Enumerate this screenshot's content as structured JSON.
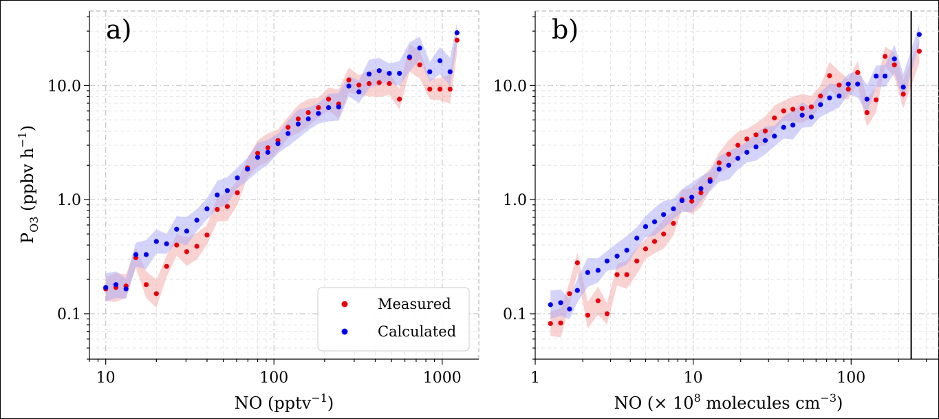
{
  "colors": {
    "measured": "#e8000b",
    "calculated": "#0000ee",
    "measured_band": "#f4a6a6",
    "calculated_band": "#a9a9f5"
  },
  "y_axis": {
    "label_main": "P",
    "label_sub": "O3",
    "label_units": " (ppbv h",
    "label_exp": "−1",
    "label_close": ")",
    "ticks": [
      "0.1",
      "1.0",
      "10.0"
    ]
  },
  "chart_data": [
    {
      "type": "scatter",
      "panel": "a)",
      "x_scale": "log",
      "y_scale": "log",
      "xlim": [
        8,
        1650
      ],
      "ylim": [
        0.04,
        45
      ],
      "xlabel_main": "NO (pptv",
      "xlabel_exp": "−1",
      "xlabel_close": ")",
      "xticks": [
        "10",
        "100",
        "1000"
      ],
      "legend": {
        "placement": "lower-right",
        "entries": [
          "Measured",
          "Calculated"
        ]
      },
      "grid": true,
      "series": [
        {
          "name": "Measured",
          "x": [
            10,
            11.5,
            13.2,
            15.1,
            17.4,
            20,
            23,
            26.4,
            30.3,
            34.8,
            40,
            46,
            52.8,
            60.6,
            69.6,
            80,
            92,
            105.6,
            121.3,
            139.3,
            160,
            183.8,
            211.1,
            242.5,
            278.6,
            320,
            367.6,
            422.3,
            485.1,
            557.2,
            640,
            735,
            844,
            970,
            1114,
            1225
          ],
          "y": [
            0.165,
            0.17,
            0.175,
            0.31,
            0.18,
            0.15,
            0.26,
            0.4,
            0.35,
            0.39,
            0.49,
            0.82,
            0.87,
            1.15,
            1.9,
            2.55,
            2.85,
            3.3,
            4.3,
            5.1,
            5.8,
            6.4,
            7.6,
            6.9,
            11.2,
            10.1,
            10.4,
            10.6,
            10.4,
            7.6,
            17.5,
            15.2,
            9.3,
            9.3,
            9.3,
            25
          ]
        },
        {
          "name": "Calculated",
          "x": [
            10,
            11.5,
            13.2,
            15.1,
            17.4,
            20,
            23,
            26.4,
            30.3,
            34.8,
            40,
            46,
            52.8,
            60.6,
            69.6,
            80,
            92,
            105.6,
            121.3,
            139.3,
            160,
            183.8,
            211.1,
            242.5,
            278.6,
            320,
            367.6,
            422.3,
            485.1,
            557.2,
            640,
            735,
            844,
            970,
            1114,
            1225
          ],
          "y": [
            0.17,
            0.18,
            0.165,
            0.33,
            0.33,
            0.43,
            0.41,
            0.55,
            0.53,
            0.66,
            0.83,
            1.1,
            1.2,
            1.55,
            1.85,
            2.35,
            2.6,
            3.1,
            3.8,
            4.6,
            5.1,
            5.7,
            6.4,
            6.5,
            9.9,
            8.8,
            12.6,
            13.5,
            12.8,
            12.8,
            17.8,
            21.3,
            13.2,
            16.5,
            13.2,
            29
          ]
        }
      ]
    },
    {
      "type": "scatter",
      "panel": "b)",
      "x_scale": "log",
      "y_scale": "log",
      "xlim": [
        1,
        360
      ],
      "ylim": [
        0.04,
        45
      ],
      "xlabel_main": "NO (× 10",
      "xlabel_exp": "8",
      "xlabel_units": " molecules cm",
      "xlabel_exp2": "−3",
      "xlabel_close": ")",
      "xticks": [
        "1",
        "10",
        "100"
      ],
      "vline_x": 240,
      "grid": true,
      "series": [
        {
          "name": "Measured",
          "x": [
            1.25,
            1.45,
            1.65,
            1.85,
            2.15,
            2.5,
            2.85,
            3.3,
            3.8,
            4.4,
            5,
            5.7,
            6.5,
            7.5,
            8.5,
            9.8,
            11.2,
            12.8,
            14.6,
            16.8,
            19.2,
            21.9,
            25,
            28.6,
            32.7,
            37.4,
            42.8,
            49,
            56,
            64,
            73,
            84,
            96,
            110,
            126,
            144,
            164,
            188,
            214,
            270
          ],
          "y": [
            0.082,
            0.083,
            0.15,
            0.28,
            0.097,
            0.13,
            0.1,
            0.22,
            0.22,
            0.29,
            0.37,
            0.43,
            0.5,
            0.62,
            1.0,
            0.97,
            1.15,
            1.5,
            2.1,
            2.5,
            3.0,
            3.4,
            3.7,
            4.0,
            5.2,
            6.0,
            6.2,
            6.3,
            6.5,
            8.1,
            12.2,
            10.1,
            9.3,
            13,
            5.8,
            7.5,
            18,
            15.2,
            8.4,
            20
          ]
        },
        {
          "name": "Calculated",
          "x": [
            1.25,
            1.45,
            1.65,
            1.85,
            2.15,
            2.5,
            2.85,
            3.3,
            3.8,
            4.4,
            5,
            5.7,
            6.5,
            7.5,
            8.5,
            9.8,
            11.2,
            12.8,
            14.6,
            16.8,
            19.2,
            21.9,
            25,
            28.6,
            32.7,
            37.4,
            42.8,
            49,
            56,
            64,
            73,
            84,
            96,
            110,
            126,
            144,
            164,
            188,
            214,
            270
          ],
          "y": [
            0.12,
            0.125,
            0.11,
            0.16,
            0.23,
            0.24,
            0.29,
            0.32,
            0.36,
            0.46,
            0.58,
            0.64,
            0.74,
            0.83,
            0.98,
            1.05,
            1.25,
            1.45,
            1.85,
            2.0,
            2.3,
            2.6,
            2.9,
            3.3,
            3.6,
            4.3,
            4.5,
            5.5,
            5.3,
            6.8,
            7.8,
            8.1,
            10.3,
            10.3,
            7.6,
            12.1,
            12.1,
            17.1,
            9.7,
            28
          ]
        }
      ]
    }
  ]
}
